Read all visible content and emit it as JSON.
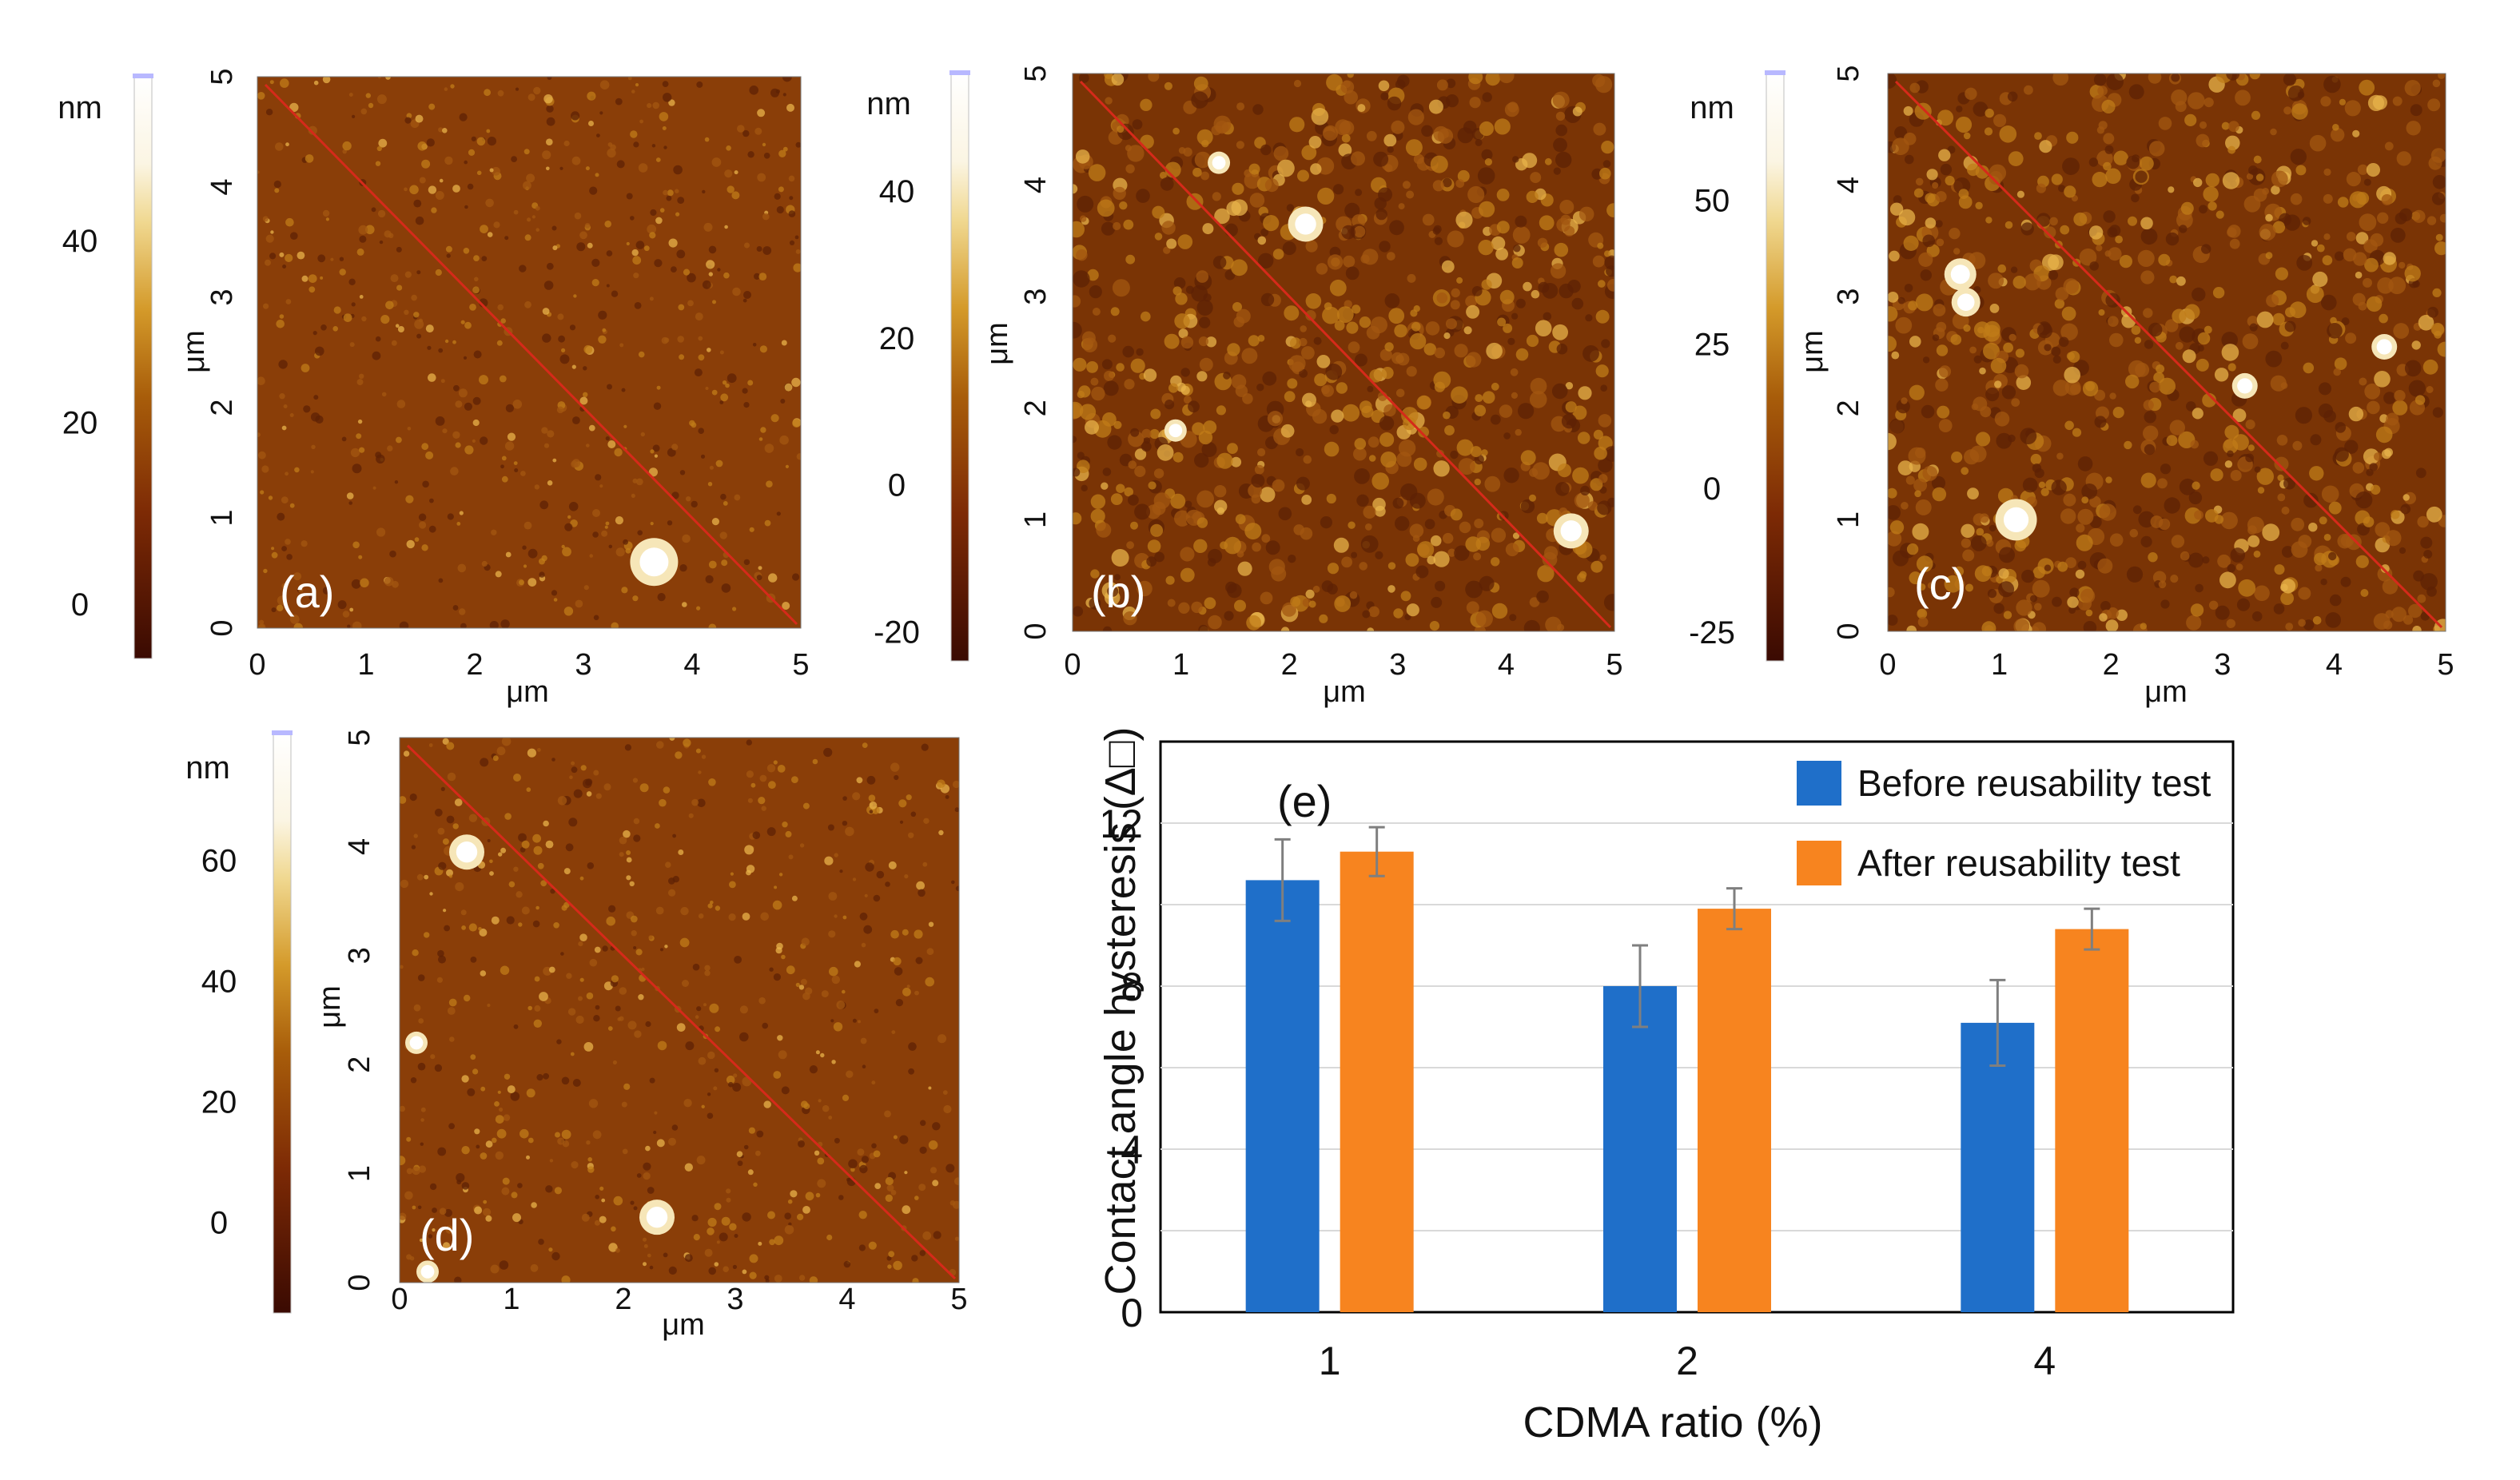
{
  "afm_panels": [
    {
      "label": "(a)",
      "colorbar": {
        "unit": "nm",
        "ticks": [
          {
            "label": "40",
            "value": 40
          },
          {
            "label": "20",
            "value": 20
          },
          {
            "label": "0",
            "value": 0
          }
        ],
        "range": [
          -6,
          58
        ]
      },
      "axes": {
        "x_label": "μm",
        "y_label": "μm",
        "x_ticks": [
          "0",
          "1",
          "2",
          "3",
          "4",
          "5"
        ],
        "y_ticks": [
          "0",
          "1",
          "2",
          "3",
          "4",
          "5"
        ]
      }
    },
    {
      "label": "(b)",
      "colorbar": {
        "unit": "nm",
        "ticks": [
          {
            "label": "40",
            "value": 40
          },
          {
            "label": "20",
            "value": 20
          },
          {
            "label": "0",
            "value": 0
          },
          {
            "label": "-20",
            "value": -20
          }
        ],
        "range": [
          -24,
          56
        ]
      },
      "axes": {
        "x_label": "μm",
        "y_label": "μm",
        "x_ticks": [
          "0",
          "1",
          "2",
          "3",
          "4",
          "5"
        ],
        "y_ticks": [
          "0",
          "1",
          "2",
          "3",
          "4",
          "5"
        ]
      }
    },
    {
      "label": "(c)",
      "colorbar": {
        "unit": "nm",
        "ticks": [
          {
            "label": "50",
            "value": 50
          },
          {
            "label": "25",
            "value": 25
          },
          {
            "label": "0",
            "value": 0
          },
          {
            "label": "-25",
            "value": -25
          }
        ],
        "range": [
          -30,
          72
        ]
      },
      "axes": {
        "x_label": "μm",
        "y_label": "μm",
        "x_ticks": [
          "0",
          "1",
          "2",
          "3",
          "4",
          "5"
        ],
        "y_ticks": [
          "0",
          "1",
          "2",
          "3",
          "4",
          "5"
        ]
      }
    },
    {
      "label": "(d)",
      "colorbar": {
        "unit": "nm",
        "ticks": [
          {
            "label": "60",
            "value": 60
          },
          {
            "label": "40",
            "value": 40
          },
          {
            "label": "20",
            "value": 20
          },
          {
            "label": "0",
            "value": 0
          }
        ],
        "range": [
          -15,
          81
        ]
      },
      "axes": {
        "x_label": "μm",
        "y_label": "μm",
        "x_ticks": [
          "0",
          "1",
          "2",
          "3",
          "4",
          "5"
        ],
        "y_ticks": [
          "0",
          "1",
          "2",
          "3",
          "4",
          "5"
        ]
      }
    }
  ],
  "chart_data": {
    "type": "bar",
    "panel_label": "(e)",
    "categories": [
      "1",
      "2",
      "4"
    ],
    "series": [
      {
        "name": "Before reusability test",
        "color": "#1f6fc9",
        "values": [
          10.6,
          8.0,
          7.1
        ],
        "errors": [
          1.0,
          1.0,
          1.05
        ]
      },
      {
        "name": "After reusability test",
        "color": "#f7841f",
        "values": [
          11.3,
          9.9,
          9.4
        ],
        "errors": [
          0.6,
          0.5,
          0.5
        ]
      }
    ],
    "xlabel": "CDMA ratio (%)",
    "ylabel": "Contact angle hysteresis (Δ□)",
    "ylim": [
      0,
      14
    ],
    "yticks": [
      {
        "label": "0",
        "value": 0
      },
      {
        "label": "4",
        "value": 4
      },
      {
        "label": "8",
        "value": 8
      },
      {
        "label": "12",
        "value": 12
      }
    ],
    "gridlines": [
      2,
      4,
      6,
      8,
      10,
      12
    ],
    "legend": "top-right"
  }
}
